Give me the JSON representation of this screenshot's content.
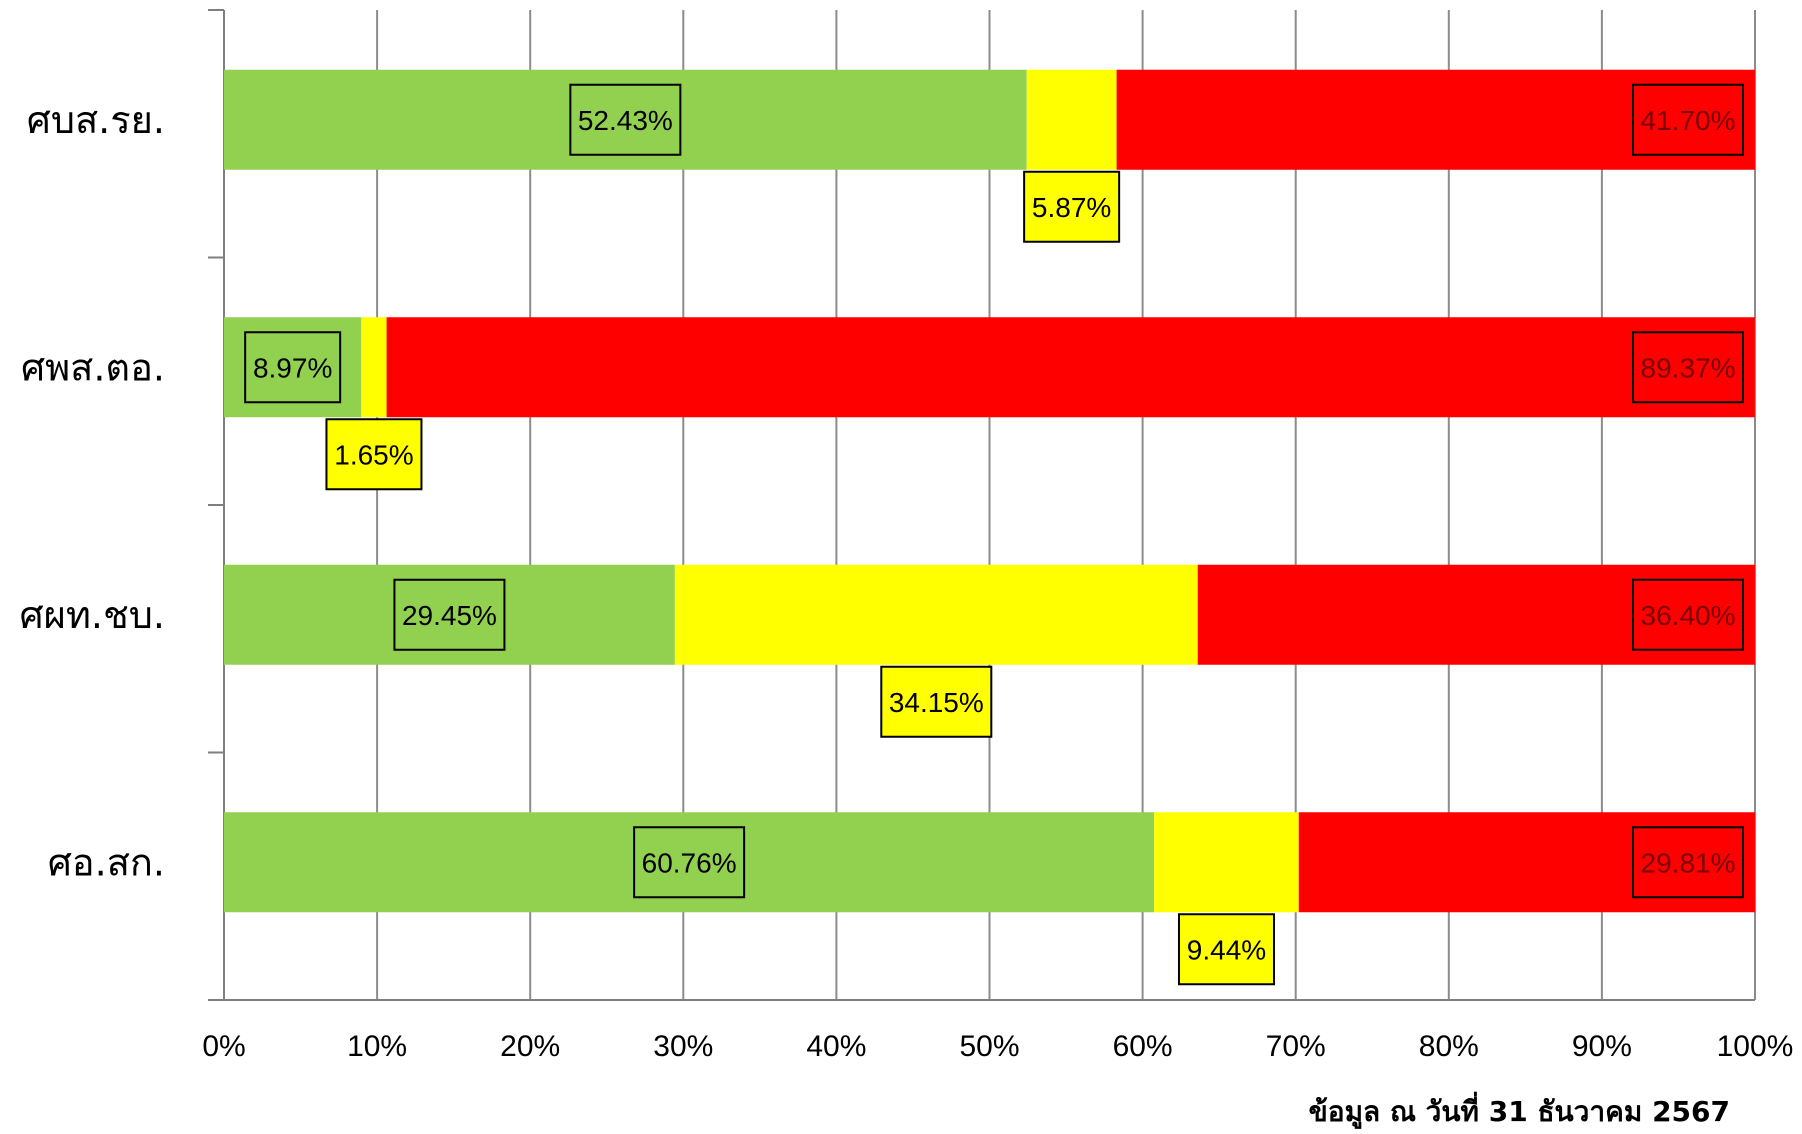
{
  "chart_data": {
    "type": "bar",
    "orientation": "horizontal",
    "stacked": "percent",
    "categories": [
      "ศบส.รย.",
      "ศพส.ตอ.",
      "ศผท.ชบ.",
      "ศอ.สก."
    ],
    "series": [
      {
        "color": "#92d050",
        "values": [
          52.43,
          8.97,
          29.45,
          60.76
        ],
        "labels": [
          "52.43%",
          "8.97%",
          "29.45%",
          "60.76%"
        ]
      },
      {
        "color": "#ffff00",
        "values": [
          5.87,
          1.65,
          34.15,
          9.44
        ],
        "labels": [
          "5.87%",
          "1.65%",
          "34.15%",
          "9.44%"
        ]
      },
      {
        "color": "#ff0000",
        "values": [
          41.7,
          89.37,
          36.4,
          29.81
        ],
        "labels": [
          "41.70%",
          "89.37%",
          "36.40%",
          "29.81%"
        ]
      }
    ],
    "xlim": [
      0,
      100
    ],
    "xticks": [
      "0%",
      "10%",
      "20%",
      "30%",
      "40%",
      "50%",
      "60%",
      "70%",
      "80%",
      "90%",
      "100%"
    ],
    "grid": true,
    "legend": "none"
  },
  "footnote": "ข้อมูล ณ วันที่ 31 ธันวาคม 2567"
}
